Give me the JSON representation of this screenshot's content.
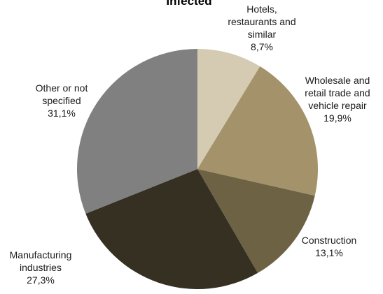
{
  "chart_data": {
    "type": "pie",
    "title": "Infected",
    "slices": [
      {
        "label": "Hotels, restaurants and similar",
        "display_lines": [
          "Hotels,",
          "restaurants and",
          "similar"
        ],
        "value": 8.7,
        "value_label": "8,7%",
        "color": "#d4cbb2"
      },
      {
        "label": "Wholesale and retail trade and vehicle repair",
        "display_lines": [
          "Wholesale and",
          "retail trade and",
          "vehicle repair"
        ],
        "value": 19.9,
        "value_label": "19,9%",
        "color": "#a4936a"
      },
      {
        "label": "Construction",
        "display_lines": [
          "Construction"
        ],
        "value": 13.1,
        "value_label": "13,1%",
        "color": "#6e6244"
      },
      {
        "label": "Manufacturing industries",
        "display_lines": [
          "Manufacturing",
          "industries"
        ],
        "value": 27.3,
        "value_label": "27,3%",
        "color": "#363022"
      },
      {
        "label": "Other or not specified",
        "display_lines": [
          "Other or not",
          "specified"
        ],
        "value": 31.1,
        "value_label": "31,1%",
        "color": "#808080"
      }
    ],
    "legend": "none"
  }
}
